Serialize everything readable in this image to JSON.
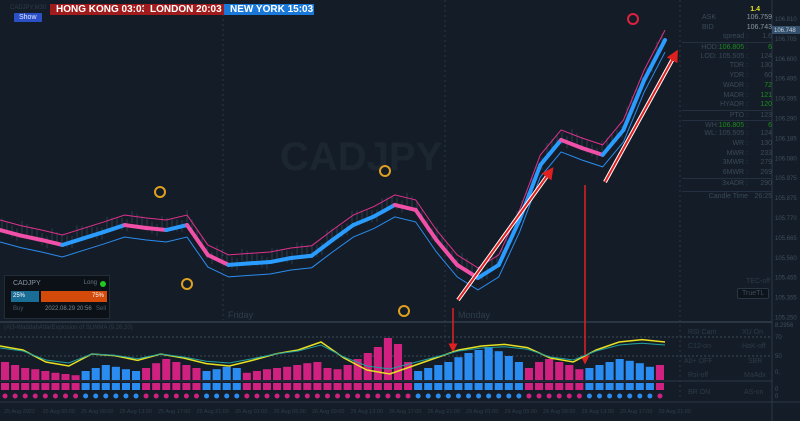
{
  "header": {
    "symbol": "CADJPY,M30",
    "show_button": "Show",
    "sessions": [
      {
        "label": "HONG KONG 03:03",
        "color": "#a01c1c"
      },
      {
        "label": "LONDON  20:03",
        "color": "#a01c1c"
      },
      {
        "label": "NEW YORK  15:03",
        "color": "#1a78d8"
      }
    ]
  },
  "info_panel": {
    "top_value": "1.4",
    "ask_label": "ASK",
    "ask": "106.759",
    "bid_label": "BID",
    "bid": "106.743",
    "rows": [
      {
        "l": "spread :",
        "v": "1.6"
      },
      {
        "l": "HOD:",
        "lv": "106.805",
        "sep": ":",
        "v": "6",
        "green": true
      },
      {
        "l": "LOD: 105.505 :",
        "v": "124"
      },
      {
        "l": "TDR :",
        "v": "130"
      },
      {
        "l": "YDR :",
        "v": "60"
      },
      {
        "l": "WADR :",
        "v": "72",
        "green": true
      },
      {
        "l": "MADR :",
        "v": "121",
        "green": true
      },
      {
        "l": "HYADR :",
        "v": "120",
        "green": true
      },
      {
        "l": "PTO :",
        "v": "123"
      },
      {
        "l": "WH:",
        "lv": "106.805",
        "sep": ":",
        "v": "6",
        "green": true
      },
      {
        "l": "WL: 105.505 :",
        "v": "124"
      },
      {
        "l": "WR :",
        "v": "130"
      },
      {
        "l": "MWR :",
        "v": "233"
      },
      {
        "l": "3MWR :",
        "v": "279"
      },
      {
        "l": "6MWR :",
        "v": "269"
      },
      {
        "l": "3xADR :",
        "v": "290"
      },
      {
        "l": "Candle Time",
        "v": "26:25"
      }
    ],
    "tec": "TEC-off",
    "truetl": "TrueTL"
  },
  "widget": {
    "symbol": "CADJPY",
    "direction": "Long",
    "buy_pct": "25%",
    "sell_pct": "75%",
    "buy_label": "Buy",
    "sell_label": "Sell",
    "datetime": "2022.08.29 20:56",
    "buy_color": "#1a6e96",
    "sell_color": "#d44a0a"
  },
  "oscillator": {
    "title": "(#)3-WaddahAttarExplosion of SLWMA (9,26,20)",
    "toggles": [
      "RSI Cam",
      "XU On",
      "C12-on",
      "HaK-off",
      "A0+ OFF",
      "SBR",
      "Rsi-off",
      "MaAdx",
      "BR ON",
      "AS-on"
    ],
    "axis": [
      "8.2956",
      "70",
      "50",
      "0,",
      "0",
      "0"
    ]
  },
  "watermark": "CADJPY",
  "day_labels": [
    "Friday",
    "Monday"
  ],
  "chart_data": {
    "type": "line",
    "title": "CADJPY,M30",
    "ylim": [
      105.25,
      106.81
    ],
    "price_ticks": [
      "106.810",
      "106.705",
      "106.600",
      "106.495",
      "106.395",
      "106.290",
      "106.185",
      "106.080",
      "105.975",
      "105.875",
      "105.770",
      "105.665",
      "105.560",
      "105.455",
      "105.355",
      "105.250"
    ],
    "current_price": "106.748",
    "x_ticks": [
      "25 Aug 2022",
      "25 Aug 05:00",
      "25 Aug 09:00",
      "25 Aug 13:00",
      "25 Aug 17:00",
      "25 Aug 21:00",
      "26 Aug 01:00",
      "26 Aug 05:00",
      "26 Aug 09:00",
      "26 Aug 13:00",
      "26 Aug 17:00",
      "26 Aug 21:00",
      "29 Aug 01:00",
      "29 Aug 05:00",
      "29 Aug 09:00",
      "29 Aug 13:00",
      "29 Aug 17:00",
      "29 Aug 21:00"
    ],
    "ma_series": [
      105.709,
      105.68,
      105.657,
      105.631,
      105.665,
      105.699,
      105.735,
      105.72,
      105.709,
      105.735,
      105.579,
      105.527,
      105.535,
      105.542,
      105.563,
      105.575,
      105.657,
      105.735,
      105.78,
      105.84,
      105.814,
      105.657,
      105.527,
      105.459,
      105.527,
      105.761,
      106.048,
      106.179,
      106.137,
      106.101,
      106.231,
      106.492,
      106.7
    ],
    "histogram": [
      -30,
      -25,
      -20,
      -18,
      -15,
      -12,
      -10,
      -8,
      15,
      20,
      25,
      22,
      18,
      15,
      -20,
      -28,
      -35,
      -30,
      -25,
      -20,
      15,
      18,
      22,
      20,
      -12,
      -15,
      -18,
      -20,
      -22,
      -25,
      -28,
      -30,
      -20,
      -18,
      -25,
      -35,
      -45,
      -55,
      -70,
      -60,
      -30,
      15,
      20,
      25,
      30,
      38,
      45,
      50,
      55,
      48,
      40,
      30,
      -20,
      -30,
      -35,
      -30,
      -25,
      -18,
      20,
      25,
      30,
      35,
      32,
      28,
      22,
      -25
    ],
    "signal_line": [
      40,
      35,
      20,
      15,
      30,
      28,
      22,
      30,
      25,
      18,
      15,
      22,
      30,
      35,
      45,
      25,
      10,
      5,
      15,
      25,
      35,
      40,
      42,
      38,
      25,
      20,
      35,
      45,
      48,
      45
    ]
  }
}
